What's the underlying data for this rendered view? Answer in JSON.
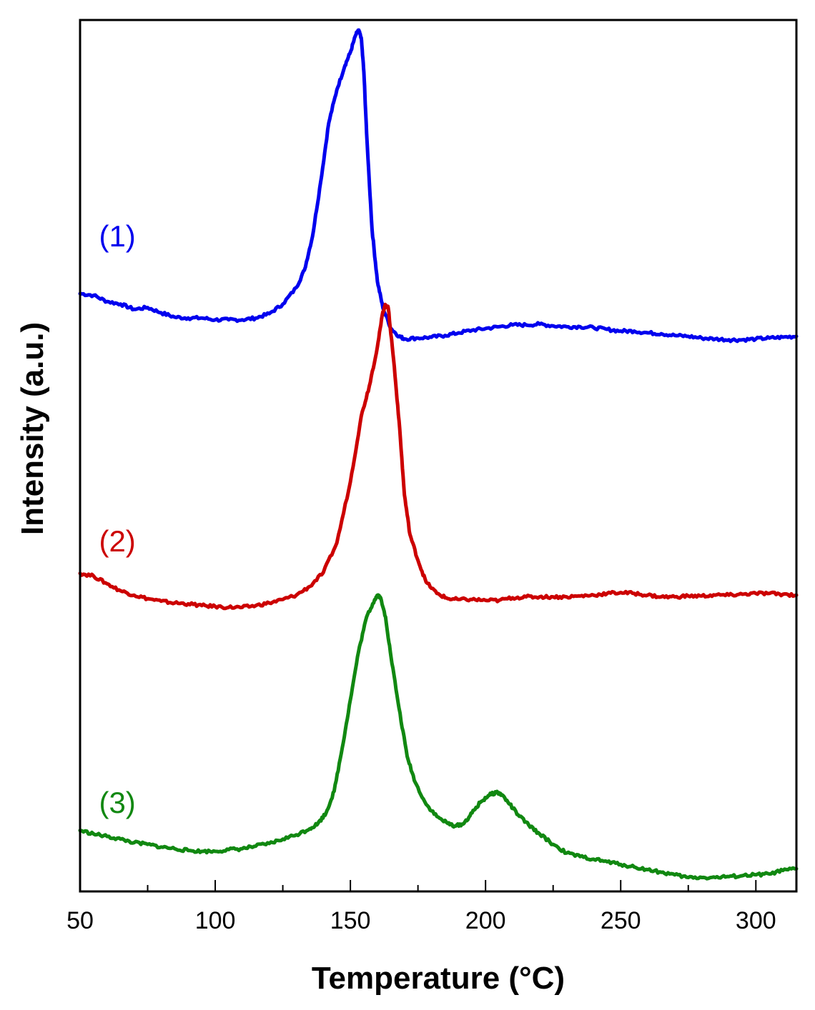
{
  "chart_data": {
    "type": "line",
    "title": "",
    "xlabel": "Temperature (°C)",
    "ylabel": "Intensity (a.u.)",
    "xlim": [
      50,
      315
    ],
    "ylim": [
      0,
      100
    ],
    "x_ticks": [
      50,
      100,
      150,
      200,
      250,
      300
    ],
    "x_minor_ticks": [
      75,
      125,
      175,
      225,
      275
    ],
    "y_tick_labels": false,
    "grid": false,
    "legend": "none",
    "series": [
      {
        "label": "(1)",
        "color": "#0000ee",
        "label_anchor": [
          57,
          74
        ],
        "points": [
          [
            50,
            68.6
          ],
          [
            55,
            68.4
          ],
          [
            60,
            67.7
          ],
          [
            65,
            67.4
          ],
          [
            70,
            66.8
          ],
          [
            75,
            67.0
          ],
          [
            80,
            66.4
          ],
          [
            85,
            65.9
          ],
          [
            90,
            65.8
          ],
          [
            95,
            65.8
          ],
          [
            100,
            65.6
          ],
          [
            105,
            65.6
          ],
          [
            110,
            65.6
          ],
          [
            115,
            65.8
          ],
          [
            120,
            66.3
          ],
          [
            125,
            67.4
          ],
          [
            130,
            69.3
          ],
          [
            133,
            71.3
          ],
          [
            136,
            75.2
          ],
          [
            139,
            81.4
          ],
          [
            142,
            88.2
          ],
          [
            145,
            92.0
          ],
          [
            148,
            94.8
          ],
          [
            150,
            96.3
          ],
          [
            152,
            98.3
          ],
          [
            153,
            98.8
          ],
          [
            154,
            98.0
          ],
          [
            155,
            94.0
          ],
          [
            156,
            87.0
          ],
          [
            158,
            76.0
          ],
          [
            160,
            70.0
          ],
          [
            162,
            67.0
          ],
          [
            165,
            64.6
          ],
          [
            168,
            63.7
          ],
          [
            170,
            63.4
          ],
          [
            175,
            63.5
          ],
          [
            180,
            63.6
          ],
          [
            185,
            63.8
          ],
          [
            190,
            64.1
          ],
          [
            195,
            64.4
          ],
          [
            200,
            64.6
          ],
          [
            205,
            64.8
          ],
          [
            210,
            65.0
          ],
          [
            215,
            65.0
          ],
          [
            220,
            65.1
          ],
          [
            225,
            64.9
          ],
          [
            230,
            64.8
          ],
          [
            235,
            64.8
          ],
          [
            240,
            64.7
          ],
          [
            245,
            64.5
          ],
          [
            250,
            64.3
          ],
          [
            255,
            64.3
          ],
          [
            260,
            64.1
          ],
          [
            265,
            64.0
          ],
          [
            270,
            63.8
          ],
          [
            275,
            63.7
          ],
          [
            280,
            63.5
          ],
          [
            285,
            63.4
          ],
          [
            290,
            63.3
          ],
          [
            295,
            63.3
          ],
          [
            300,
            63.4
          ],
          [
            305,
            63.5
          ],
          [
            310,
            63.6
          ],
          [
            315,
            63.7
          ]
        ]
      },
      {
        "label": "(2)",
        "color": "#cc0000",
        "label_anchor": [
          57,
          39
        ],
        "points": [
          [
            50,
            36.5
          ],
          [
            55,
            36.2
          ],
          [
            60,
            35.3
          ],
          [
            65,
            34.5
          ],
          [
            70,
            34.0
          ],
          [
            75,
            33.6
          ],
          [
            80,
            33.3
          ],
          [
            85,
            33.1
          ],
          [
            90,
            33.0
          ],
          [
            95,
            32.8
          ],
          [
            100,
            32.7
          ],
          [
            105,
            32.6
          ],
          [
            110,
            32.6
          ],
          [
            115,
            32.8
          ],
          [
            120,
            33.1
          ],
          [
            125,
            33.5
          ],
          [
            130,
            34.0
          ],
          [
            135,
            35.0
          ],
          [
            140,
            36.6
          ],
          [
            145,
            40.0
          ],
          [
            150,
            47.0
          ],
          [
            154,
            54.5
          ],
          [
            157,
            58.0
          ],
          [
            160,
            62.5
          ],
          [
            162,
            66.5
          ],
          [
            163,
            67.3
          ],
          [
            164,
            67.0
          ],
          [
            166,
            61.0
          ],
          [
            168,
            54.0
          ],
          [
            170,
            45.5
          ],
          [
            172,
            41.0
          ],
          [
            175,
            38.0
          ],
          [
            178,
            35.5
          ],
          [
            182,
            34.2
          ],
          [
            186,
            33.6
          ],
          [
            190,
            33.5
          ],
          [
            195,
            33.5
          ],
          [
            200,
            33.4
          ],
          [
            205,
            33.4
          ],
          [
            210,
            33.7
          ],
          [
            215,
            33.8
          ],
          [
            220,
            33.8
          ],
          [
            225,
            33.8
          ],
          [
            230,
            33.8
          ],
          [
            235,
            33.9
          ],
          [
            240,
            34.0
          ],
          [
            245,
            34.2
          ],
          [
            250,
            34.3
          ],
          [
            255,
            34.2
          ],
          [
            260,
            34.0
          ],
          [
            265,
            33.8
          ],
          [
            270,
            33.8
          ],
          [
            275,
            33.9
          ],
          [
            280,
            33.9
          ],
          [
            285,
            34.0
          ],
          [
            290,
            34.0
          ],
          [
            295,
            34.1
          ],
          [
            300,
            34.2
          ],
          [
            305,
            34.2
          ],
          [
            310,
            34.1
          ],
          [
            315,
            34.0
          ]
        ]
      },
      {
        "label": "(3)",
        "color": "#118811",
        "label_anchor": [
          57,
          9
        ],
        "points": [
          [
            50,
            7.0
          ],
          [
            55,
            6.6
          ],
          [
            60,
            6.3
          ],
          [
            65,
            6.0
          ],
          [
            70,
            5.6
          ],
          [
            75,
            5.4
          ],
          [
            80,
            5.1
          ],
          [
            85,
            4.9
          ],
          [
            90,
            4.7
          ],
          [
            95,
            4.6
          ],
          [
            100,
            4.6
          ],
          [
            105,
            4.8
          ],
          [
            110,
            4.9
          ],
          [
            115,
            5.2
          ],
          [
            120,
            5.5
          ],
          [
            125,
            6.0
          ],
          [
            130,
            6.5
          ],
          [
            135,
            7.2
          ],
          [
            138,
            7.8
          ],
          [
            141,
            9.0
          ],
          [
            144,
            11.5
          ],
          [
            147,
            16.5
          ],
          [
            150,
            22.0
          ],
          [
            153,
            27.5
          ],
          [
            156,
            31.5
          ],
          [
            159,
            33.5
          ],
          [
            160,
            34.0
          ],
          [
            161,
            33.8
          ],
          [
            163,
            31.5
          ],
          [
            165,
            27.0
          ],
          [
            168,
            21.0
          ],
          [
            171,
            15.5
          ],
          [
            174,
            12.5
          ],
          [
            178,
            10.0
          ],
          [
            182,
            8.6
          ],
          [
            186,
            7.8
          ],
          [
            189,
            7.5
          ],
          [
            192,
            7.8
          ],
          [
            195,
            9.0
          ],
          [
            198,
            10.2
          ],
          [
            201,
            11.0
          ],
          [
            204,
            11.4
          ],
          [
            206,
            11.1
          ],
          [
            209,
            10.0
          ],
          [
            212,
            8.8
          ],
          [
            216,
            7.6
          ],
          [
            220,
            6.6
          ],
          [
            225,
            5.4
          ],
          [
            230,
            4.4
          ],
          [
            235,
            4.0
          ],
          [
            240,
            3.7
          ],
          [
            245,
            3.4
          ],
          [
            250,
            3.1
          ],
          [
            255,
            2.8
          ],
          [
            260,
            2.5
          ],
          [
            265,
            2.2
          ],
          [
            270,
            1.9
          ],
          [
            275,
            1.6
          ],
          [
            280,
            1.6
          ],
          [
            285,
            1.6
          ],
          [
            290,
            1.7
          ],
          [
            295,
            1.8
          ],
          [
            300,
            1.9
          ],
          [
            305,
            2.0
          ],
          [
            310,
            2.4
          ],
          [
            315,
            2.6
          ]
        ]
      }
    ]
  }
}
